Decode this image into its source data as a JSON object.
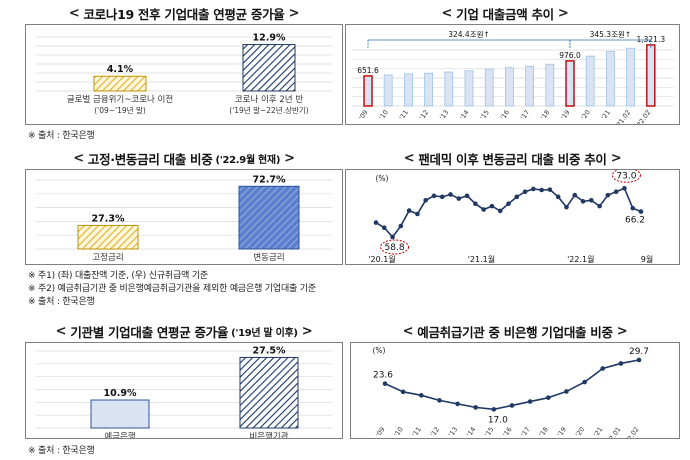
{
  "titles": {
    "t1": "코로나19 전후 기업대출 연평균 증가율",
    "t2": "기업 대출금액 추이",
    "t3": "고정·변동금리 대출 비중",
    "t3_suffix": "('22.9월 현재)",
    "t4": "팬데믹 이후 변동금리 대출 비중 추이",
    "t5": "기관별 기업대출 연평균 증가율",
    "t5_suffix": "('19년 말 이후)",
    "t6": "예금취급기관 중 비은행 기업대출 비중"
  },
  "notes": {
    "n1": "※ 출처 : 한국은행",
    "n2": "※ 주1) (좌) 대출잔액 기준, (우) 신규취급액 기준",
    "n3": "※ 주2) 예금취급기관 중 비은행예금취급기관을 제외한 예금은행 기업대출 기준",
    "n4": "※ 출처 : 한국은행",
    "n5": "※ 출처 : 한국은행"
  },
  "colors": {
    "yellow": "#f3c740",
    "blue": "#b4c7e7",
    "navy": "#1f3864",
    "red": "#c00000",
    "lightblue": "#dae3f3",
    "line": "#203864",
    "brackets": "#2e75b6"
  },
  "chart_data": [
    {
      "id": "c1",
      "type": "bar",
      "categories": [
        "글로벌 금융위기~코로나 이전",
        "코로나 이후 2년 반"
      ],
      "category_sub": [
        "('09~'19년 말)",
        "('19년 말~22년.상반기)"
      ],
      "values": [
        4.1,
        12.9
      ],
      "data_labels": [
        "4.1%",
        "12.9%"
      ],
      "ylim": [
        0,
        15
      ],
      "grid": true
    },
    {
      "id": "c2",
      "type": "bar",
      "categories": [
        "'09",
        "'10",
        "'11",
        "'12",
        "'13",
        "'14",
        "'15",
        "'16",
        "'17",
        "'18",
        "'19",
        "'20",
        "'21",
        "'21.Q2",
        "'22.Q2"
      ],
      "tick_labels": [
        "'09",
        "'10",
        "'11",
        "'12",
        "'13",
        "'14",
        "'15",
        "'16",
        "'17",
        "'18",
        "'19",
        "'20",
        "'21",
        "'21.02",
        "'22.02"
      ],
      "values": [
        651.6,
        672,
        695,
        710,
        735,
        765,
        800,
        830,
        860,
        905,
        976.0,
        1080,
        1180,
        1250,
        1321.3
      ],
      "data_labels": {
        "0": "651.6",
        "10": "976.0",
        "14": "1,321.3"
      },
      "highlighted": [
        0,
        10,
        14
      ],
      "annotations": [
        "324.4조원↑",
        "345.3조원↑"
      ],
      "ylim": [
        0,
        1450
      ],
      "grid": true
    },
    {
      "id": "c3",
      "type": "bar",
      "categories": [
        "고정금리",
        "변동금리"
      ],
      "values": [
        27.3,
        72.7
      ],
      "data_labels": [
        "27.3%",
        "72.7%"
      ],
      "ylim": [
        0,
        80
      ],
      "grid": true
    },
    {
      "id": "c4",
      "type": "line",
      "ylabel": "(%)",
      "x_tick_labels": [
        "'20.1월",
        "'21.1월",
        "'22.1월",
        "9월"
      ],
      "x_tick_index": [
        0,
        12,
        24,
        32
      ],
      "values": [
        63.0,
        61.5,
        58.8,
        62.0,
        66.5,
        65.5,
        69.5,
        70.8,
        70.5,
        71.2,
        70.0,
        70.8,
        68.5,
        66.8,
        67.8,
        66.4,
        68.5,
        70.5,
        72.0,
        72.8,
        72.5,
        72.6,
        70.5,
        67.5,
        71.0,
        69.2,
        69.5,
        67.8,
        71.0,
        72.0,
        73.0,
        67.2,
        66.2
      ],
      "data_labels": {
        "2": "58.8",
        "30": "73.0",
        "32": "66.2"
      },
      "ylim": [
        55,
        76
      ]
    },
    {
      "id": "c5",
      "type": "bar",
      "categories": [
        "예금은행",
        "비은행기관"
      ],
      "values": [
        10.9,
        27.5
      ],
      "data_labels": [
        "10.9%",
        "27.5%"
      ],
      "ylim": [
        0,
        30
      ],
      "grid": true
    },
    {
      "id": "c6",
      "type": "line",
      "ylabel": "(%)",
      "categories": [
        "'09",
        "'10",
        "'11",
        "'12",
        "'13",
        "'14",
        "'15",
        "'16",
        "'17",
        "'18",
        "'19",
        "'20",
        "'21",
        "'22.Q1",
        "'22.Q2"
      ],
      "tick_labels": [
        "'09",
        "'10",
        "'11",
        "'12",
        "'13",
        "'14",
        "'15",
        "'16",
        "'17",
        "'18",
        "'19",
        "'20",
        "'21",
        "'22.01",
        "'22.02"
      ],
      "values": [
        23.6,
        21.5,
        20.6,
        19.3,
        18.4,
        17.5,
        17.0,
        18.0,
        19.0,
        20.0,
        21.6,
        24.0,
        27.5,
        28.8,
        29.7
      ],
      "data_labels": {
        "0": "23.6",
        "6": "17.0",
        "14": "29.7"
      },
      "ylim": [
        14,
        32
      ]
    }
  ]
}
